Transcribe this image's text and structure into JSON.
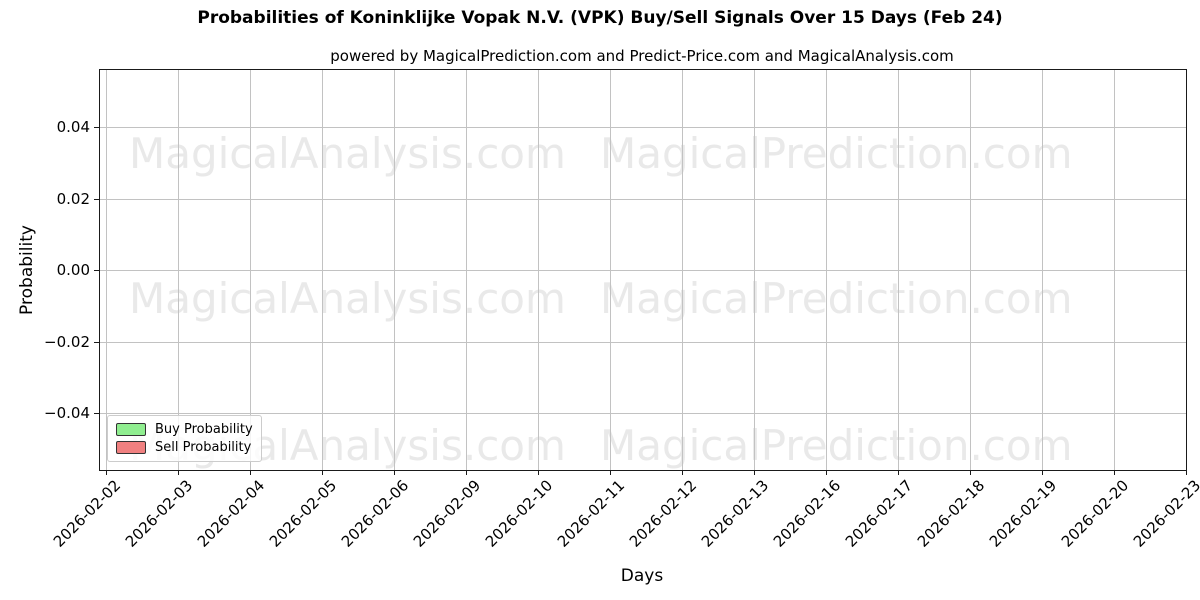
{
  "title": "Probabilities of Koninklijke Vopak N.V. (VPK) Buy/Sell Signals Over 15 Days (Feb 24)",
  "subtitle": "powered by MagicalPrediction.com and Predict-Price.com and MagicalAnalysis.com",
  "watermarks": {
    "left": "MagicalAnalysis.com",
    "right": "MagicalPrediction.com"
  },
  "axes": {
    "x_label": "Days",
    "y_label": "Probability"
  },
  "legend": {
    "items": [
      {
        "label": "Buy Probability",
        "color": "#90EE90"
      },
      {
        "label": "Sell Probability",
        "color": "#F08080"
      }
    ]
  },
  "chart_data": {
    "type": "line",
    "title": "Probabilities of Koninklijke Vopak N.V. (VPK) Buy/Sell Signals Over 15 Days (Feb 24)",
    "subtitle": "powered by MagicalPrediction.com and Predict-Price.com and MagicalAnalysis.com",
    "xlabel": "Days",
    "ylabel": "Probability",
    "x": [
      "2026-02-02",
      "2026-02-03",
      "2026-02-04",
      "2026-02-05",
      "2026-02-06",
      "2026-02-09",
      "2026-02-10",
      "2026-02-11",
      "2026-02-12",
      "2026-02-13",
      "2026-02-16",
      "2026-02-17",
      "2026-02-18",
      "2026-02-19",
      "2026-02-20",
      "2026-02-23"
    ],
    "y_ticks": [
      0.04,
      0.02,
      0.0,
      -0.02,
      -0.04
    ],
    "ylim": [
      -0.056,
      0.056
    ],
    "grid": true,
    "legend_position": "lower left",
    "series": [
      {
        "name": "Buy Probability",
        "color": "#90EE90",
        "values": []
      },
      {
        "name": "Sell Probability",
        "color": "#F08080",
        "values": []
      }
    ]
  }
}
